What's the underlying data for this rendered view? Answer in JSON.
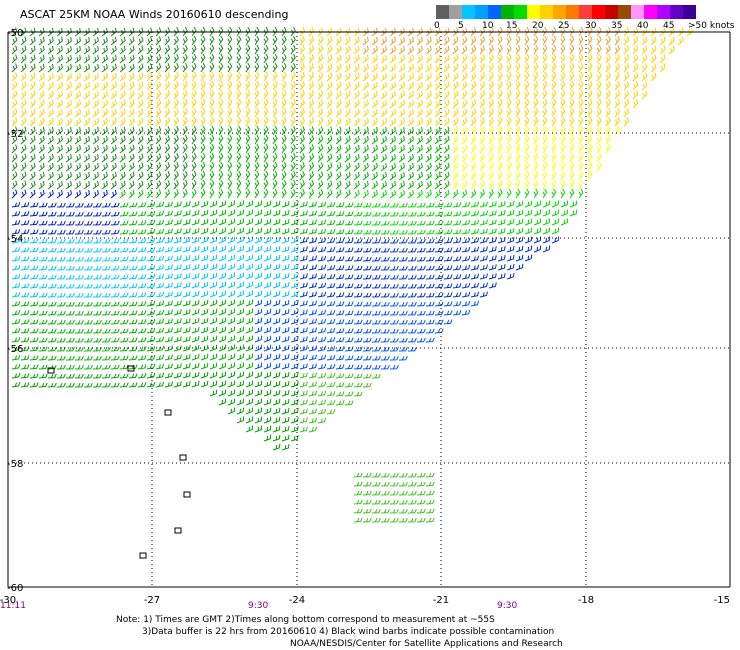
{
  "title": "ASCAT 25KM NOAA Winds 20160610 descending",
  "colorbar": {
    "colors": [
      "#606060",
      "#a0a0a0",
      "#00c8ff",
      "#00a0ff",
      "#0064ff",
      "#00b400",
      "#00dc00",
      "#ffff00",
      "#ffd200",
      "#ffa500",
      "#ff7800",
      "#ff3c3c",
      "#ff0000",
      "#c80000",
      "#964b00",
      "#ff96ff",
      "#ff00ff",
      "#b400ff",
      "#6400c8",
      "#3c0096"
    ],
    "labels": [
      "0",
      "5",
      "10",
      "15",
      "20",
      "25",
      "30",
      "35",
      "40",
      "45",
      ">50 knots"
    ]
  },
  "map": {
    "lon_ticks": [
      "-30",
      "-27",
      "-24",
      "-21",
      "-18",
      "-15"
    ],
    "lat_ticks": [
      "-50",
      "-52",
      "-54",
      "-56",
      "-58",
      "-60"
    ],
    "time_labels": [
      "11:11",
      "9:30",
      "9:30"
    ]
  },
  "notes": {
    "line1": "Note: 1) Times are GMT 2)Times along bottom correspond to measurement at ~55S",
    "line2": "3)Data buffer is 22 hrs from 20160610 4) Black wind barbs indicate possible contamination",
    "line3": "NOAA/NESDIS/Center for Satellite Applications and Research"
  }
}
